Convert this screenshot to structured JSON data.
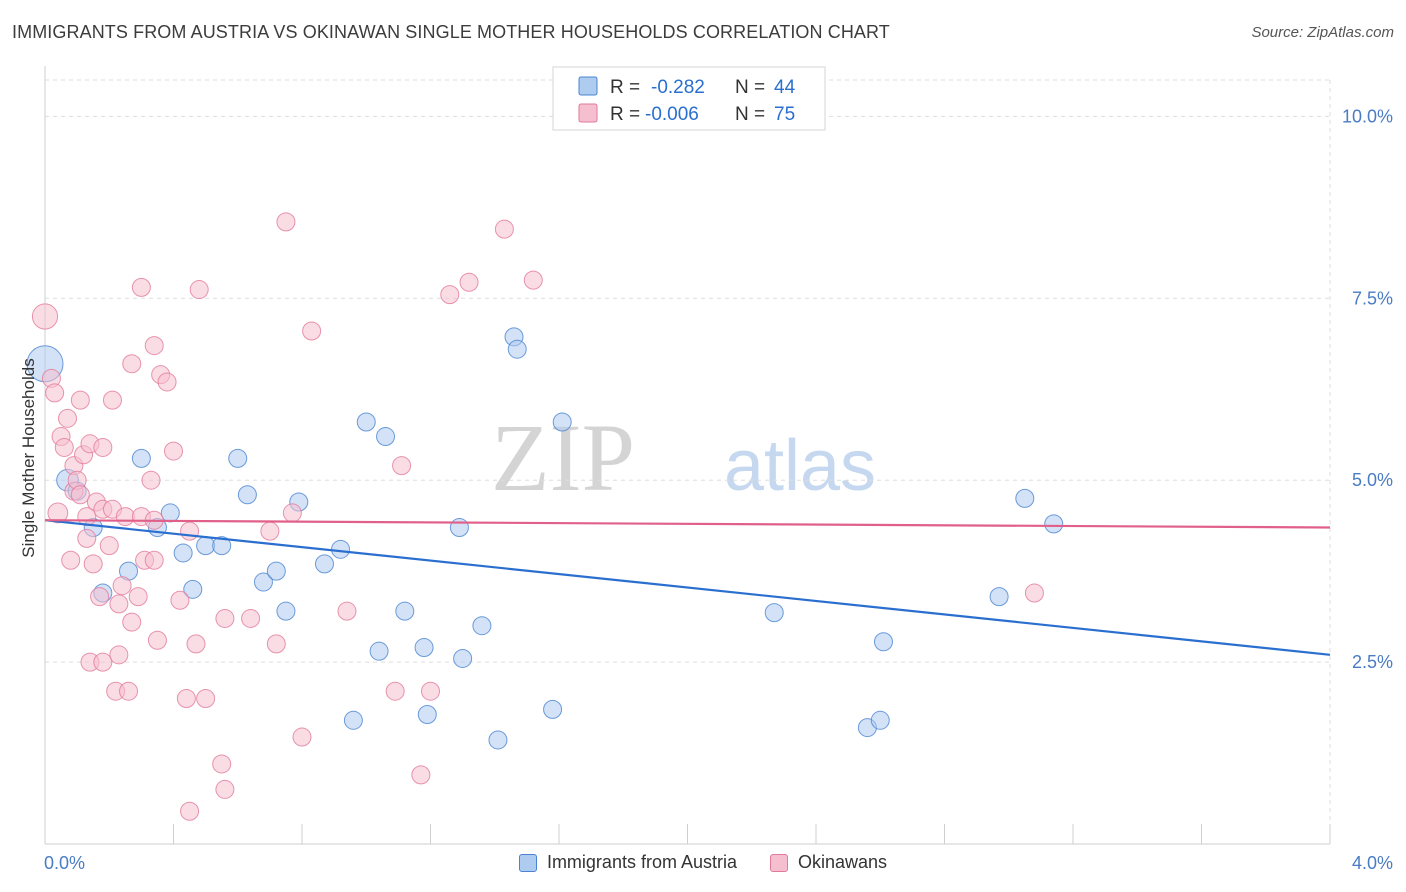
{
  "title": "IMMIGRANTS FROM AUSTRIA VS OKINAWAN SINGLE MOTHER HOUSEHOLDS CORRELATION CHART",
  "source": "Source: ZipAtlas.com",
  "watermark": {
    "zip": "ZIP",
    "atlas": "atlas"
  },
  "colors": {
    "blue": "#4a84d1",
    "blue_fill": "#aecbf0",
    "blue_line": "#2a6fcf",
    "pink": "#e27a9b",
    "pink_fill": "#f6bfd0",
    "pink_line": "#e0608a",
    "axis_text": "#4a7cc4",
    "grid": "#dddddd"
  },
  "legend_top": {
    "rows": [
      {
        "r_label": "R =",
        "r_value": "-0.282",
        "n_label": "N =",
        "n_value": "44"
      },
      {
        "r_label": "R =",
        "r_value": "-0.006",
        "n_label": "N =",
        "n_value": "75"
      }
    ]
  },
  "legend_bottom": {
    "series_a": "Immigrants from Austria",
    "series_b": "Okinawans"
  },
  "chart_data": {
    "type": "scatter",
    "ylabel": "Single Mother Households",
    "xlim": [
      0,
      4.0
    ],
    "ylim": [
      0,
      10.5
    ],
    "x_tick_labels": [
      "0.0%",
      "4.0%"
    ],
    "y_ticks": [
      2.5,
      5.0,
      7.5,
      10.0
    ],
    "y_tick_labels": [
      "2.5%",
      "5.0%",
      "7.5%",
      "10.0%"
    ],
    "grid": true,
    "legend_placement": "top-center",
    "series": [
      {
        "name": "Immigrants from Austria",
        "color": "blue",
        "trend": {
          "x0": 0.0,
          "y0": 4.45,
          "x1": 4.0,
          "y1": 2.6
        },
        "points": [
          [
            0.0,
            6.6,
            2.0
          ],
          [
            0.07,
            5.0,
            1.2
          ],
          [
            0.1,
            4.85,
            1
          ],
          [
            0.15,
            4.35,
            1
          ],
          [
            0.18,
            3.45,
            1
          ],
          [
            0.26,
            3.75,
            1
          ],
          [
            0.3,
            5.3,
            1
          ],
          [
            0.35,
            4.35,
            1
          ],
          [
            0.39,
            4.55,
            1
          ],
          [
            0.43,
            4.0,
            1
          ],
          [
            0.46,
            3.5,
            1
          ],
          [
            0.5,
            4.1,
            1
          ],
          [
            0.55,
            4.1,
            1
          ],
          [
            0.6,
            5.3,
            1
          ],
          [
            0.63,
            4.8,
            1
          ],
          [
            0.68,
            3.6,
            1
          ],
          [
            0.72,
            3.75,
            1
          ],
          [
            0.75,
            3.2,
            1
          ],
          [
            0.79,
            4.7,
            1
          ],
          [
            0.87,
            3.85,
            1
          ],
          [
            0.92,
            4.05,
            1
          ],
          [
            0.96,
            1.7,
            1
          ],
          [
            1.0,
            5.8,
            1
          ],
          [
            1.04,
            2.65,
            1
          ],
          [
            1.06,
            5.6,
            1
          ],
          [
            1.12,
            3.2,
            1
          ],
          [
            1.18,
            2.7,
            1
          ],
          [
            1.19,
            1.78,
            1
          ],
          [
            1.29,
            4.35,
            1
          ],
          [
            1.3,
            2.55,
            1
          ],
          [
            1.36,
            3.0,
            1
          ],
          [
            1.41,
            1.43,
            1
          ],
          [
            1.46,
            6.97,
            1
          ],
          [
            1.47,
            6.8,
            1
          ],
          [
            1.58,
            1.85,
            1
          ],
          [
            1.61,
            5.8,
            1
          ],
          [
            2.27,
            3.18,
            1
          ],
          [
            2.56,
            1.6,
            1
          ],
          [
            2.6,
            1.7,
            1
          ],
          [
            2.61,
            2.78,
            1
          ],
          [
            2.97,
            3.4,
            1
          ],
          [
            3.05,
            4.75,
            1
          ],
          [
            3.14,
            4.4,
            1
          ]
        ]
      },
      {
        "name": "Okinawans",
        "color": "pink",
        "trend": {
          "x0": 0.0,
          "y0": 4.45,
          "x1": 4.0,
          "y1": 4.35
        },
        "points": [
          [
            0.0,
            7.25,
            1.4
          ],
          [
            0.02,
            6.4,
            1
          ],
          [
            0.03,
            6.2,
            1
          ],
          [
            0.04,
            4.55,
            1.1
          ],
          [
            0.05,
            5.6,
            1
          ],
          [
            0.06,
            5.45,
            1
          ],
          [
            0.07,
            5.85,
            1
          ],
          [
            0.08,
            3.9,
            1
          ],
          [
            0.09,
            4.85,
            1
          ],
          [
            0.09,
            5.2,
            1
          ],
          [
            0.1,
            5.0,
            1
          ],
          [
            0.11,
            4.8,
            1
          ],
          [
            0.12,
            5.35,
            1
          ],
          [
            0.11,
            6.1,
            1
          ],
          [
            0.13,
            4.2,
            1
          ],
          [
            0.13,
            4.5,
            1
          ],
          [
            0.14,
            5.5,
            1
          ],
          [
            0.14,
            2.5,
            1
          ],
          [
            0.15,
            3.85,
            1
          ],
          [
            0.16,
            4.7,
            1
          ],
          [
            0.17,
            3.4,
            1
          ],
          [
            0.18,
            4.6,
            1
          ],
          [
            0.18,
            2.5,
            1
          ],
          [
            0.18,
            5.45,
            1
          ],
          [
            0.2,
            4.1,
            1
          ],
          [
            0.21,
            6.1,
            1
          ],
          [
            0.21,
            4.6,
            1
          ],
          [
            0.22,
            2.1,
            1
          ],
          [
            0.23,
            3.3,
            1
          ],
          [
            0.23,
            2.6,
            1
          ],
          [
            0.24,
            3.55,
            1
          ],
          [
            0.25,
            4.5,
            1
          ],
          [
            0.26,
            2.1,
            1
          ],
          [
            0.27,
            6.6,
            1
          ],
          [
            0.27,
            3.05,
            1
          ],
          [
            0.29,
            3.4,
            1
          ],
          [
            0.3,
            4.5,
            1
          ],
          [
            0.3,
            7.65,
            1
          ],
          [
            0.31,
            3.9,
            1
          ],
          [
            0.33,
            5.0,
            1
          ],
          [
            0.34,
            3.9,
            1
          ],
          [
            0.34,
            6.85,
            1
          ],
          [
            0.34,
            4.45,
            1
          ],
          [
            0.35,
            2.8,
            1
          ],
          [
            0.36,
            6.45,
            1
          ],
          [
            0.38,
            6.35,
            1
          ],
          [
            0.4,
            5.4,
            1
          ],
          [
            0.42,
            3.35,
            1
          ],
          [
            0.44,
            2.0,
            1
          ],
          [
            0.45,
            4.3,
            1
          ],
          [
            0.47,
            2.75,
            1
          ],
          [
            0.48,
            7.62,
            1
          ],
          [
            0.5,
            2.0,
            1
          ],
          [
            0.55,
            1.1,
            1
          ],
          [
            0.56,
            3.1,
            1
          ],
          [
            0.56,
            0.75,
            1
          ],
          [
            0.45,
            0.45,
            1
          ],
          [
            0.64,
            3.1,
            1
          ],
          [
            0.7,
            4.3,
            1
          ],
          [
            0.72,
            2.75,
            1
          ],
          [
            0.75,
            8.55,
            1
          ],
          [
            0.77,
            4.55,
            1
          ],
          [
            0.8,
            1.47,
            1
          ],
          [
            0.83,
            7.05,
            1
          ],
          [
            0.94,
            3.2,
            1
          ],
          [
            1.09,
            2.1,
            1
          ],
          [
            1.11,
            5.2,
            1
          ],
          [
            1.17,
            0.95,
            1
          ],
          [
            1.2,
            2.1,
            1
          ],
          [
            1.26,
            7.55,
            1
          ],
          [
            1.32,
            7.72,
            1
          ],
          [
            1.43,
            8.45,
            1
          ],
          [
            1.52,
            7.75,
            1
          ],
          [
            3.08,
            3.45,
            1
          ]
        ]
      }
    ]
  }
}
